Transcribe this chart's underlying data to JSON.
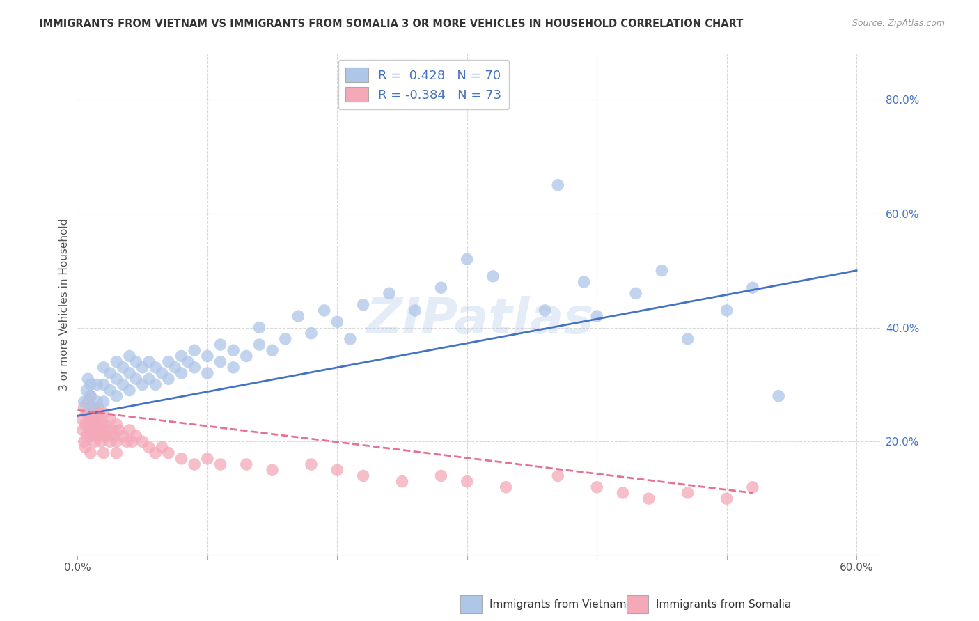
{
  "title": "IMMIGRANTS FROM VIETNAM VS IMMIGRANTS FROM SOMALIA 3 OR MORE VEHICLES IN HOUSEHOLD CORRELATION CHART",
  "source": "Source: ZipAtlas.com",
  "ylabel": "3 or more Vehicles in Household",
  "xlim": [
    0.0,
    0.62
  ],
  "ylim": [
    0.0,
    0.88
  ],
  "xticks": [
    0.0,
    0.1,
    0.2,
    0.3,
    0.4,
    0.5,
    0.6
  ],
  "xticklabels": [
    "0.0%",
    "",
    "",
    "",
    "",
    "",
    "60.0%"
  ],
  "yticks_right": [
    0.2,
    0.4,
    0.6,
    0.8
  ],
  "yticklabels_right": [
    "20.0%",
    "40.0%",
    "60.0%",
    "80.0%"
  ],
  "vietnam_color": "#aec6e8",
  "vietnam_line_color": "#4472c4",
  "somalia_color": "#f4a8b8",
  "somalia_line_color": "#e87090",
  "vietnam_R": 0.428,
  "vietnam_N": 70,
  "somalia_R": -0.384,
  "somalia_N": 73,
  "legend_label_vietnam": "Immigrants from Vietnam",
  "legend_label_somalia": "Immigrants from Somalia",
  "watermark": "ZIPatlas",
  "background_color": "#ffffff",
  "grid_color": "#d8d8d8",
  "viet_line_x0": 0.0,
  "viet_line_y0": 0.245,
  "viet_line_x1": 0.6,
  "viet_line_y1": 0.5,
  "som_line_x0": 0.0,
  "som_line_y0": 0.255,
  "som_line_x1": 0.52,
  "som_line_y1": 0.11,
  "vietnam_x": [
    0.005,
    0.007,
    0.008,
    0.01,
    0.01,
    0.01,
    0.015,
    0.015,
    0.02,
    0.02,
    0.02,
    0.025,
    0.025,
    0.03,
    0.03,
    0.03,
    0.035,
    0.035,
    0.04,
    0.04,
    0.04,
    0.045,
    0.045,
    0.05,
    0.05,
    0.055,
    0.055,
    0.06,
    0.06,
    0.065,
    0.07,
    0.07,
    0.075,
    0.08,
    0.08,
    0.085,
    0.09,
    0.09,
    0.1,
    0.1,
    0.11,
    0.11,
    0.12,
    0.12,
    0.13,
    0.14,
    0.14,
    0.15,
    0.16,
    0.17,
    0.18,
    0.19,
    0.2,
    0.21,
    0.22,
    0.24,
    0.26,
    0.28,
    0.3,
    0.32,
    0.36,
    0.37,
    0.39,
    0.4,
    0.43,
    0.45,
    0.47,
    0.5,
    0.52,
    0.54
  ],
  "vietnam_y": [
    0.27,
    0.29,
    0.31,
    0.26,
    0.28,
    0.3,
    0.27,
    0.3,
    0.27,
    0.3,
    0.33,
    0.29,
    0.32,
    0.28,
    0.31,
    0.34,
    0.3,
    0.33,
    0.29,
    0.32,
    0.35,
    0.31,
    0.34,
    0.3,
    0.33,
    0.31,
    0.34,
    0.3,
    0.33,
    0.32,
    0.31,
    0.34,
    0.33,
    0.32,
    0.35,
    0.34,
    0.33,
    0.36,
    0.32,
    0.35,
    0.34,
    0.37,
    0.33,
    0.36,
    0.35,
    0.37,
    0.4,
    0.36,
    0.38,
    0.42,
    0.39,
    0.43,
    0.41,
    0.38,
    0.44,
    0.46,
    0.43,
    0.47,
    0.52,
    0.49,
    0.43,
    0.65,
    0.48,
    0.42,
    0.46,
    0.5,
    0.38,
    0.43,
    0.47,
    0.28
  ],
  "somalia_x": [
    0.003,
    0.004,
    0.005,
    0.005,
    0.006,
    0.006,
    0.007,
    0.007,
    0.008,
    0.008,
    0.009,
    0.009,
    0.01,
    0.01,
    0.01,
    0.01,
    0.012,
    0.012,
    0.013,
    0.013,
    0.014,
    0.015,
    0.015,
    0.016,
    0.016,
    0.017,
    0.018,
    0.018,
    0.019,
    0.02,
    0.02,
    0.02,
    0.021,
    0.022,
    0.023,
    0.025,
    0.025,
    0.027,
    0.028,
    0.03,
    0.03,
    0.03,
    0.032,
    0.035,
    0.038,
    0.04,
    0.042,
    0.045,
    0.05,
    0.055,
    0.06,
    0.065,
    0.07,
    0.08,
    0.09,
    0.1,
    0.11,
    0.13,
    0.15,
    0.18,
    0.2,
    0.22,
    0.25,
    0.28,
    0.3,
    0.33,
    0.37,
    0.4,
    0.42,
    0.44,
    0.47,
    0.5,
    0.52
  ],
  "somalia_y": [
    0.24,
    0.22,
    0.26,
    0.2,
    0.23,
    0.19,
    0.25,
    0.21,
    0.27,
    0.23,
    0.25,
    0.22,
    0.28,
    0.24,
    0.21,
    0.18,
    0.26,
    0.22,
    0.24,
    0.2,
    0.23,
    0.25,
    0.21,
    0.26,
    0.22,
    0.24,
    0.23,
    0.2,
    0.22,
    0.25,
    0.21,
    0.18,
    0.23,
    0.21,
    0.22,
    0.24,
    0.2,
    0.22,
    0.21,
    0.23,
    0.2,
    0.18,
    0.22,
    0.21,
    0.2,
    0.22,
    0.2,
    0.21,
    0.2,
    0.19,
    0.18,
    0.19,
    0.18,
    0.17,
    0.16,
    0.17,
    0.16,
    0.16,
    0.15,
    0.16,
    0.15,
    0.14,
    0.13,
    0.14,
    0.13,
    0.12,
    0.14,
    0.12,
    0.11,
    0.1,
    0.11,
    0.1,
    0.12
  ]
}
